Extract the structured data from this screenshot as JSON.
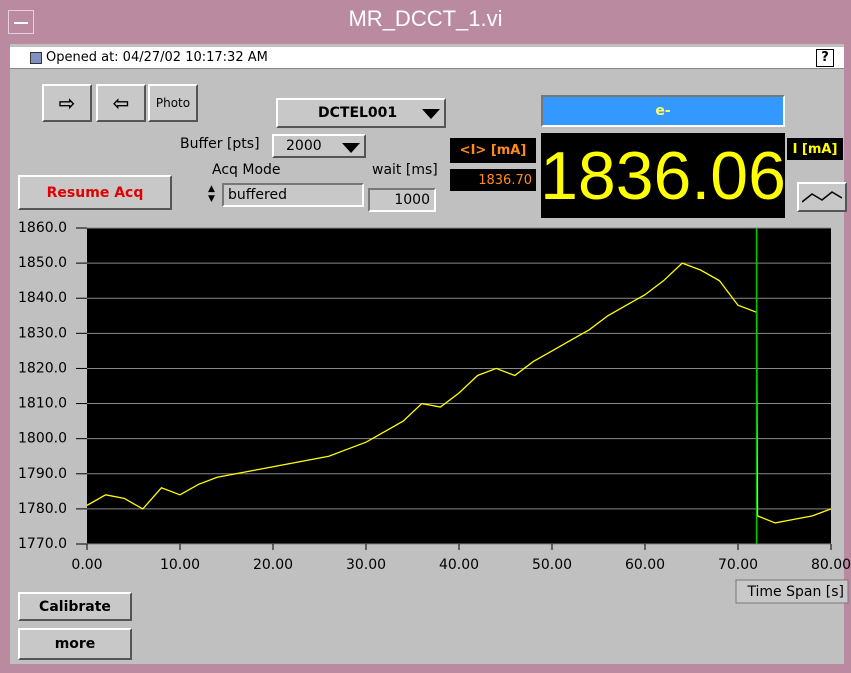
{
  "window": {
    "title": "MR_DCCT_1.vi"
  },
  "status": {
    "opened": "Opened at: 04/27/02 10:17:32 AM",
    "help": "?"
  },
  "toolbar": {
    "photo": "Photo",
    "channel": "DCTEL001",
    "beam": "e-"
  },
  "controls": {
    "buffer_label": "Buffer [pts]",
    "buffer": "2000",
    "acq_mode_label": "Acq Mode",
    "acq_mode": "buffered",
    "wait_label": "wait [ms]",
    "wait": "1000",
    "resume": "Resume Acq",
    "calibrate": "Calibrate",
    "more": "more"
  },
  "readout": {
    "avg_label": "<I> [mA]",
    "avg": "1836.70",
    "current_label": "I [mA]",
    "current": "1836.06"
  },
  "chart_data": {
    "type": "line",
    "xlabel": "Time Span [s]",
    "x": [
      0,
      2,
      4,
      6,
      8,
      10,
      12,
      14,
      16,
      18,
      20,
      22,
      24,
      26,
      28,
      30,
      32,
      34,
      36,
      38,
      40,
      42,
      44,
      46,
      48,
      50,
      52,
      54,
      56,
      58,
      60,
      62,
      64,
      66,
      68,
      70,
      72,
      72.1,
      74,
      76,
      78,
      80
    ],
    "series": [
      {
        "color": "#ffff00",
        "values": [
          1781,
          1784,
          1783,
          1780,
          1786,
          1784,
          1787,
          1789,
          1790,
          1791,
          1792,
          1793,
          1794,
          1795,
          1797,
          1799,
          1802,
          1805,
          1810,
          1809,
          1813,
          1818,
          1820,
          1818,
          1822,
          1825,
          1828,
          1831,
          1835,
          1838,
          1841,
          1845,
          1850,
          1848,
          1845,
          1838,
          1836,
          1778,
          1776,
          1777,
          1778,
          1780
        ]
      }
    ],
    "cursor": {
      "x": 72,
      "color": "#00cc00"
    },
    "xlim": [
      0,
      80
    ],
    "xticks": [
      {
        "value": 0,
        "label": "0.00"
      },
      {
        "value": 10,
        "label": "10.00"
      },
      {
        "value": 20,
        "label": "20.00"
      },
      {
        "value": 30,
        "label": "30.00"
      },
      {
        "value": 40,
        "label": "40.00"
      },
      {
        "value": 50,
        "label": "50.00"
      },
      {
        "value": 60,
        "label": "60.00"
      },
      {
        "value": 70,
        "label": "70.00"
      },
      {
        "value": 80,
        "label": "80.00"
      }
    ],
    "ylim": [
      1770,
      1860
    ],
    "yticks": [
      {
        "value": 1770,
        "label": "1770.0"
      },
      {
        "value": 1780,
        "label": "1780.0"
      },
      {
        "value": 1790,
        "label": "1790.0"
      },
      {
        "value": 1800,
        "label": "1800.0"
      },
      {
        "value": 1810,
        "label": "1810.0"
      },
      {
        "value": 1820,
        "label": "1820.0"
      },
      {
        "value": 1830,
        "label": "1830.0"
      },
      {
        "value": 1840,
        "label": "1840.0"
      },
      {
        "value": 1850,
        "label": "1850.0"
      },
      {
        "value": 1860,
        "label": "1860.0"
      }
    ],
    "grid": true
  }
}
